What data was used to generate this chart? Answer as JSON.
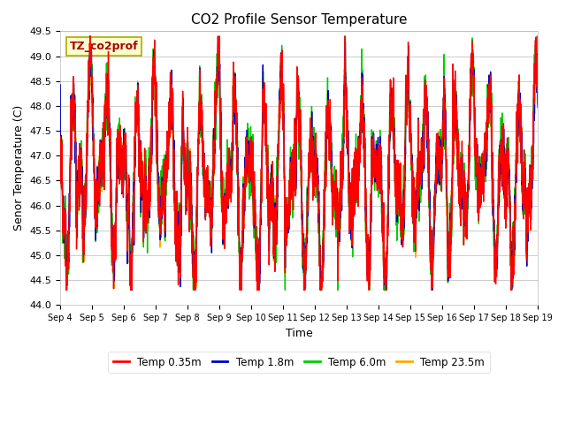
{
  "title": "CO2 Profile Sensor Temperature",
  "ylabel": "Senor Temperature (C)",
  "xlabel": "Time",
  "ylim": [
    44.0,
    49.5
  ],
  "yticks": [
    44.0,
    44.5,
    45.0,
    45.5,
    46.0,
    46.5,
    47.0,
    47.5,
    48.0,
    48.5,
    49.0,
    49.5
  ],
  "xtick_labels": [
    "Sep 4",
    "Sep 5",
    "Sep 6",
    "Sep 7",
    "Sep 8",
    "Sep 9",
    "Sep 10",
    "Sep 11",
    "Sep 12",
    "Sep 13",
    "Sep 14",
    "Sep 15",
    "Sep 16",
    "Sep 17",
    "Sep 18",
    "Sep 19"
  ],
  "colors": {
    "red": "#ff0000",
    "blue": "#0000bb",
    "green": "#00cc00",
    "orange": "#ffaa00"
  },
  "legend_labels": [
    "Temp 0.35m",
    "Temp 1.8m",
    "Temp 6.0m",
    "Temp 23.5m"
  ],
  "annotation_text": "TZ_co2prof",
  "annotation_fg": "#aa0000",
  "annotation_bg": "#ffffcc",
  "annotation_edge": "#aaaa00",
  "bg_color": "#ffffff",
  "grid_color": "#cccccc",
  "line_width": 1.0,
  "n_points": 3000,
  "days": 15
}
